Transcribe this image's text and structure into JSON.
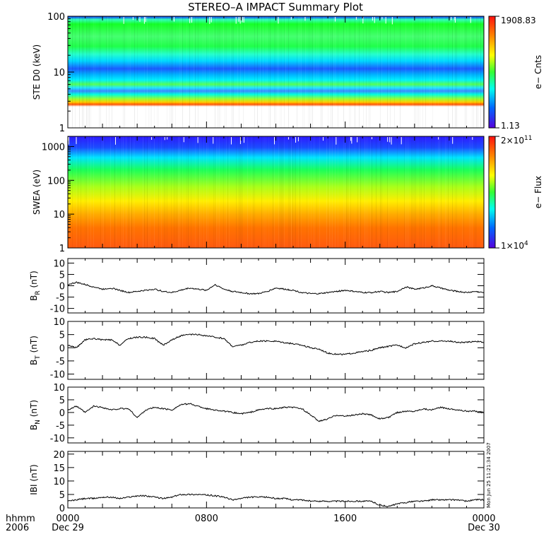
{
  "title": "STEREO–A IMPACT Summary Plot",
  "timestamp": "Mon Jun 25 11:21:34 2007",
  "chart_data": [
    {
      "type": "heatmap",
      "ylabel": "STE D0 (keV)",
      "yscale": "log",
      "ylim": [
        1,
        100
      ],
      "y_ticks": [
        "1",
        "10",
        "100"
      ],
      "colorbar_label": "e− Cnts",
      "colorbar_max": "1908.83",
      "colorbar_min": "1.13"
    },
    {
      "type": "heatmap",
      "ylabel": "SWEA (eV)",
      "yscale": "log",
      "ylim": [
        1,
        2000
      ],
      "y_ticks": [
        "1",
        "10",
        "100",
        "1000"
      ],
      "colorbar_label": "e− Flux",
      "colorbar_max_base": "2×10",
      "colorbar_max_exp": "11",
      "colorbar_min_base": "1×10",
      "colorbar_min_exp": "4"
    },
    {
      "type": "line",
      "ylabel_main": "B",
      "ylabel_sub": "R",
      "ylabel_unit": " (nT)",
      "ylim": [
        -12,
        12
      ],
      "y_ticks": [
        -10,
        -5,
        0,
        5,
        10
      ],
      "x_hours": [
        0,
        0.5,
        1,
        1.5,
        2,
        2.5,
        3,
        3.5,
        4,
        4.5,
        5,
        5.5,
        6,
        6.5,
        7,
        7.5,
        8,
        8.5,
        9,
        9.5,
        10,
        10.5,
        11,
        11.5,
        12,
        12.5,
        13,
        13.5,
        14,
        14.5,
        15,
        15.5,
        16,
        16.5,
        17,
        17.5,
        18,
        18.5,
        19,
        19.5,
        20,
        20.5,
        21,
        21.5,
        22,
        22.5,
        23,
        23.5,
        24
      ],
      "values": [
        0.5,
        1.5,
        0.5,
        -0.5,
        -1.5,
        -1,
        -2,
        -3,
        -2.5,
        -2,
        -1.5,
        -2.5,
        -3,
        -2,
        -1,
        -1.5,
        -2,
        0.5,
        -1.5,
        -2.5,
        -3,
        -3.5,
        -3.5,
        -2.5,
        -1,
        -1.5,
        -2,
        -3,
        -3.5,
        -3.5,
        -3,
        -2.5,
        -2,
        -2.5,
        -3,
        -3,
        -2.5,
        -3,
        -2.5,
        -0.5,
        -1.5,
        -1,
        0,
        -1,
        -2,
        -2.5,
        -3,
        -2.5,
        -3
      ]
    },
    {
      "type": "line",
      "ylabel_main": "B",
      "ylabel_sub": "T",
      "ylabel_unit": " (nT)",
      "ylim": [
        -12,
        10
      ],
      "y_ticks": [
        -10,
        -5,
        0,
        5,
        10
      ],
      "x_hours": [
        0,
        0.5,
        1,
        1.5,
        2,
        2.5,
        3,
        3.5,
        4,
        4.5,
        5,
        5.5,
        6,
        6.5,
        7,
        7.5,
        8,
        8.5,
        9,
        9.5,
        10,
        10.5,
        11,
        11.5,
        12,
        12.5,
        13,
        13.5,
        14,
        14.5,
        15,
        15.5,
        16,
        16.5,
        17,
        17.5,
        18,
        18.5,
        19,
        19.5,
        20,
        20.5,
        21,
        21.5,
        22,
        22.5,
        23,
        23.5,
        24
      ],
      "values": [
        1,
        0,
        3,
        3.5,
        3,
        3,
        1,
        3.5,
        4,
        4,
        3.5,
        1,
        3,
        4.5,
        5,
        5,
        4.5,
        4,
        3.5,
        0.5,
        1,
        2,
        2.5,
        2.5,
        2.5,
        2,
        1.5,
        1,
        0,
        -0.5,
        -2,
        -2.5,
        -2.5,
        -2,
        -1.5,
        -1,
        0,
        0.5,
        1,
        0,
        1.5,
        2,
        2.5,
        2.5,
        2.5,
        2,
        2,
        2.5,
        2
      ]
    },
    {
      "type": "line",
      "ylabel_main": "B",
      "ylabel_sub": "N",
      "ylabel_unit": " (nT)",
      "ylim": [
        -12,
        10
      ],
      "y_ticks": [
        -10,
        -5,
        0,
        5,
        10
      ],
      "x_hours": [
        0,
        0.5,
        1,
        1.5,
        2,
        2.5,
        3,
        3.5,
        4,
        4.5,
        5,
        5.5,
        6,
        6.5,
        7,
        7.5,
        8,
        8.5,
        9,
        9.5,
        10,
        10.5,
        11,
        11.5,
        12,
        12.5,
        13,
        13.5,
        14,
        14.5,
        15,
        15.5,
        16,
        16.5,
        17,
        17.5,
        18,
        18.5,
        19,
        19.5,
        20,
        20.5,
        21,
        21.5,
        22,
        22.5,
        23,
        23.5,
        24
      ],
      "values": [
        1,
        2.5,
        0,
        2.5,
        2,
        1,
        1.5,
        1.5,
        -2,
        1,
        2,
        1.5,
        1,
        3,
        3.5,
        2.5,
        1.5,
        1,
        0.5,
        0,
        -0.5,
        0,
        1,
        1.5,
        1.5,
        2,
        2,
        1.5,
        -1,
        -3.5,
        -2.5,
        -1,
        -1.5,
        -1,
        -0.5,
        -1,
        -2.5,
        -2,
        0,
        0.5,
        0.5,
        1.5,
        1,
        2,
        1.5,
        1,
        0.5,
        0.5,
        0
      ]
    },
    {
      "type": "line",
      "ylabel": "IBI (nT)",
      "ylim": [
        0,
        21
      ],
      "y_ticks": [
        0,
        5,
        10,
        15,
        20
      ],
      "x_hours": [
        0,
        0.5,
        1,
        1.5,
        2,
        2.5,
        3,
        3.5,
        4,
        4.5,
        5,
        5.5,
        6,
        6.5,
        7,
        7.5,
        8,
        8.5,
        9,
        9.5,
        10,
        10.5,
        11,
        11.5,
        12,
        12.5,
        13,
        13.5,
        14,
        14.5,
        15,
        15.5,
        16,
        16.5,
        17,
        17.5,
        18,
        18.5,
        19,
        19.5,
        20,
        20.5,
        21,
        21.5,
        22,
        22.5,
        23,
        23.5,
        24
      ],
      "values": [
        2.5,
        3,
        3.5,
        3.5,
        4,
        4,
        3.5,
        4,
        4.5,
        4.5,
        4,
        3.5,
        4,
        5,
        5,
        5,
        4.8,
        4.5,
        4,
        3,
        3.5,
        4,
        4,
        4,
        3.5,
        3.5,
        3,
        3,
        2.5,
        2.5,
        2.5,
        2.5,
        2.5,
        2.5,
        2.5,
        2.5,
        1,
        0.5,
        1.5,
        2,
        2.5,
        2.5,
        3,
        3,
        3,
        3,
        2.5,
        3,
        3
      ]
    }
  ],
  "x_axis": {
    "row1_label": "hhmm",
    "row2_label": "2006",
    "ticks": [
      {
        "hour": 0,
        "label": "0000",
        "date": "Dec 29"
      },
      {
        "hour": 8,
        "label": "0800",
        "date": ""
      },
      {
        "hour": 16,
        "label": "1600",
        "date": ""
      },
      {
        "hour": 24,
        "label": "0000",
        "date": "Dec 30"
      }
    ]
  },
  "colors": {
    "trace": "#000000",
    "axis": "#000000"
  }
}
